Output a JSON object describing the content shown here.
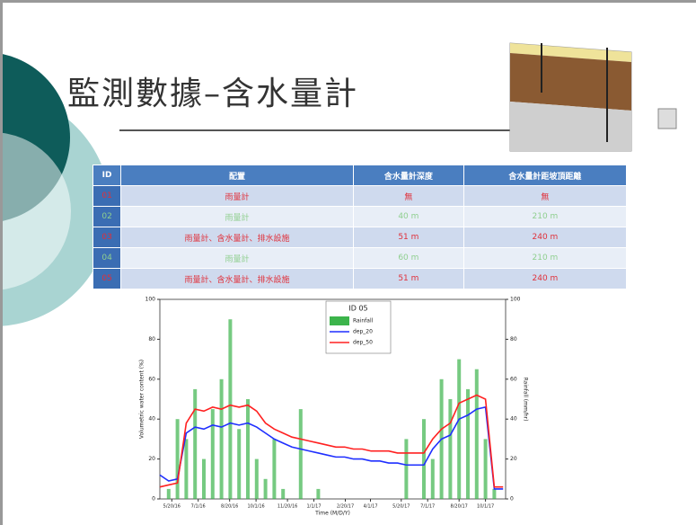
{
  "slide": {
    "title": "監測數據–含水量計"
  },
  "table": {
    "header": [
      "ID",
      "配置",
      "含水量計深度",
      "含水量計距坡頂距離"
    ],
    "rows": [
      [
        "01",
        "雨量計",
        "無",
        "無"
      ],
      [
        "02",
        "雨量計",
        "40 m",
        "210 m"
      ],
      [
        "03",
        "雨量計、含水量計、排水設施",
        "51 m",
        "240 m"
      ],
      [
        "04",
        "雨量計",
        "60 m",
        "210 m"
      ],
      [
        "05",
        "雨量計、含水量計、排水設施",
        "51 m",
        "240 m"
      ]
    ]
  },
  "chart_data": {
    "type": "line-bar",
    "title": "ID 05",
    "xlabel": "Time (M/D/Y)",
    "ylabel": "Volumetric water content (%)",
    "y2label": "Rainfall (mm/hr)",
    "x": [
      0,
      14,
      28,
      42,
      56,
      70,
      84,
      98,
      112,
      126,
      140,
      154,
      168,
      182,
      196,
      210,
      224,
      238,
      252,
      266,
      280,
      294,
      308,
      322,
      336,
      350,
      364,
      378,
      392,
      406,
      420,
      434,
      448,
      462,
      476,
      490,
      504,
      518,
      532,
      546
    ],
    "xlim": [
      0,
      550
    ],
    "xticks": [
      {
        "value": 19,
        "label": "5/20/16"
      },
      {
        "value": 61,
        "label": "7/1/16"
      },
      {
        "value": 111,
        "label": "8/20/16"
      },
      {
        "value": 153,
        "label": "10/1/16"
      },
      {
        "value": 203,
        "label": "11/20/16"
      },
      {
        "value": 245,
        "label": "1/1/17"
      },
      {
        "value": 295,
        "label": "2/20/17"
      },
      {
        "value": 335,
        "label": "4/1/17"
      },
      {
        "value": 384,
        "label": "5/20/17"
      },
      {
        "value": 426,
        "label": "7/1/17"
      },
      {
        "value": 476,
        "label": "8/20/17"
      },
      {
        "value": 518,
        "label": "10/1/17"
      }
    ],
    "ylim": [
      0,
      100
    ],
    "yticks": [
      0,
      20,
      40,
      60,
      80,
      100
    ],
    "y2lim": [
      0,
      100
    ],
    "y2ticks": [
      0,
      20,
      40,
      60,
      80,
      100
    ],
    "series": [
      {
        "name": "Rainfall",
        "color": "#3cb44b",
        "kind": "bar",
        "axis": "y2",
        "values": [
          0,
          5,
          40,
          30,
          55,
          20,
          45,
          60,
          90,
          35,
          50,
          20,
          10,
          30,
          5,
          0,
          45,
          0,
          5,
          0,
          0,
          0,
          0,
          0,
          0,
          0,
          0,
          0,
          30,
          0,
          40,
          20,
          60,
          50,
          70,
          55,
          65,
          30,
          5,
          0
        ]
      },
      {
        "name": "dep_20",
        "color": "#1f2fff",
        "kind": "line",
        "values": [
          12,
          9,
          10,
          33,
          36,
          35,
          37,
          36,
          38,
          37,
          38,
          36,
          33,
          30,
          28,
          26,
          25,
          24,
          23,
          22,
          21,
          21,
          20,
          20,
          19,
          19,
          18,
          18,
          17,
          17,
          17,
          25,
          30,
          32,
          40,
          42,
          45,
          46,
          5,
          5
        ]
      },
      {
        "name": "dep_50",
        "color": "#ff2020",
        "kind": "line",
        "values": [
          6,
          7,
          8,
          38,
          45,
          44,
          46,
          45,
          47,
          46,
          47,
          44,
          38,
          35,
          33,
          31,
          30,
          29,
          28,
          27,
          26,
          26,
          25,
          25,
          24,
          24,
          24,
          23,
          23,
          23,
          23,
          30,
          35,
          38,
          48,
          50,
          52,
          50,
          6,
          6
        ]
      }
    ]
  }
}
